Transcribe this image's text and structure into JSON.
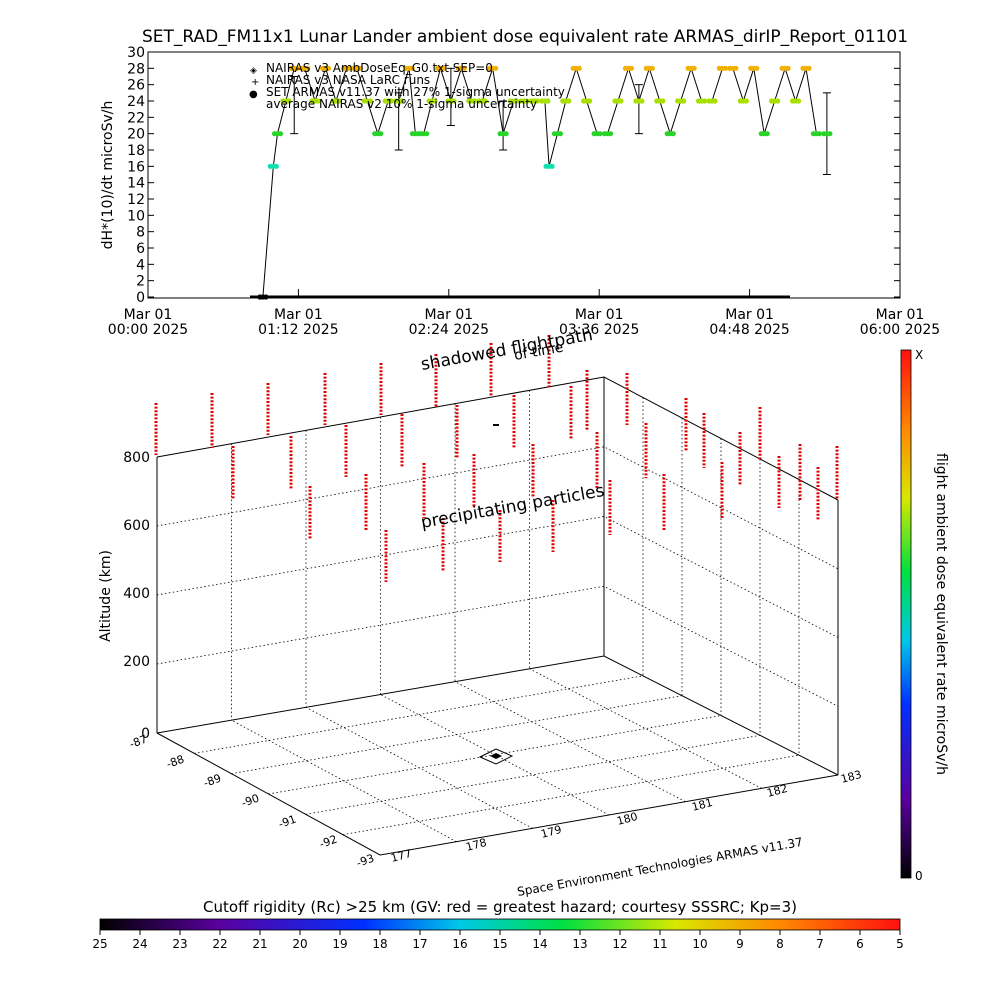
{
  "title": "SET_RAD_FM11x1  Lunar Lander ambient dose equivalent rate ARMAS_dirIP_Report_01101",
  "colors": {
    "orange": "#f2b000",
    "lime": "#a8e000",
    "green": "#28d428",
    "cyan": "#10e0b0",
    "blue": "#1010e0",
    "red": "#e00000",
    "line": "#000000"
  },
  "chart_data": [
    {
      "type": "line",
      "ylabel": "dH*(10)/dt microSv/h",
      "ylim": [
        0,
        30
      ],
      "yticks": [
        0,
        2,
        4,
        6,
        8,
        10,
        12,
        14,
        16,
        18,
        20,
        22,
        24,
        26,
        28,
        30
      ],
      "xlim_minutes": [
        0,
        360
      ],
      "xticks": [
        {
          "line1": "Mar 01",
          "line2": "00:00 2025",
          "minutes": 0
        },
        {
          "line1": "Mar 01",
          "line2": "01:12 2025",
          "minutes": 72
        },
        {
          "line1": "Mar 01",
          "line2": "02:24 2025",
          "minutes": 144
        },
        {
          "line1": "Mar 01",
          "line2": "03:36 2025",
          "minutes": 216
        },
        {
          "line1": "Mar 01",
          "line2": "04:48 2025",
          "minutes": 288
        },
        {
          "line1": "Mar 01",
          "line2": "06:00 2025",
          "minutes": 360
        }
      ],
      "legend": [
        {
          "symbol": "◈",
          "text": "NAIRAS v3 AmbDoseEq_G0.txt SEP=0"
        },
        {
          "symbol": "+",
          "text": "NAIRAS v3 NASA LaRC runs"
        },
        {
          "symbol": "●",
          "text": "SET ARMAS v11.37 with 27% 1-sigma uncertainty"
        },
        {
          "symbol": "",
          "text": "average NAIRAS v2 10% 1-sigma uncertainty"
        }
      ],
      "series": [
        {
          "x": [
            55,
            60,
            62,
            66,
            70,
            75,
            80,
            85,
            90,
            95,
            100,
            105,
            110,
            115,
            120,
            125,
            128,
            132,
            136,
            140,
            145,
            150,
            155,
            160,
            165,
            170,
            175,
            180,
            185,
            190,
            192,
            196,
            200,
            205,
            210,
            215,
            220,
            225,
            230,
            235,
            240,
            245,
            250,
            255,
            260,
            265,
            270,
            275,
            280,
            285,
            290,
            295,
            300,
            305,
            310,
            315,
            320,
            325
          ],
          "y": [
            0,
            16,
            20,
            24,
            28,
            28,
            24,
            28,
            24,
            28,
            28,
            24,
            20,
            24,
            24,
            28,
            20,
            20,
            24,
            28,
            24,
            28,
            24,
            24,
            28,
            20,
            24,
            24,
            24,
            24,
            16,
            20,
            24,
            28,
            24,
            20,
            20,
            24,
            28,
            24,
            28,
            24,
            20,
            24,
            28,
            24,
            24,
            28,
            28,
            24,
            28,
            20,
            24,
            28,
            24,
            28,
            20,
            20
          ]
        }
      ],
      "error_bars": [
        {
          "x": 70,
          "low": 20,
          "high": 27
        },
        {
          "x": 120,
          "low": 18,
          "high": 25
        },
        {
          "x": 145,
          "low": 21,
          "high": 28
        },
        {
          "x": 170,
          "low": 18,
          "high": 24
        },
        {
          "x": 235,
          "low": 20,
          "high": 26
        },
        {
          "x": 325,
          "low": 15,
          "high": 25
        }
      ]
    },
    {
      "type": "scatter",
      "zlabel": "Altitude (km)",
      "zticks": [
        0,
        200,
        400,
        600,
        800
      ],
      "xticks": [
        177,
        178,
        179,
        180,
        181,
        182,
        183
      ],
      "yticks": [
        -87,
        -88,
        -89,
        -90,
        -91,
        -92,
        -93
      ],
      "annotations": [
        "shadowed flightpath",
        "of time",
        "precipitating particles"
      ],
      "credit": "Space Environment Technologies ARMAS v11.37",
      "colorbar_label": "flight ambient dose equivalent rate microSv/h",
      "colorbar_top": "X",
      "colorbar_bottom": "0"
    }
  ],
  "rigidity": {
    "label": "Cutoff rigidity (Rc) >25 km (GV: red = greatest hazard; courtesy SSSRC; Kp=3)",
    "ticks": [
      "25",
      "24",
      "23",
      "22",
      "21",
      "20",
      "19",
      "18",
      "17",
      "16",
      "15",
      "14",
      "13",
      "12",
      "11",
      "10",
      "9",
      "8",
      "7",
      "6",
      "5"
    ]
  }
}
